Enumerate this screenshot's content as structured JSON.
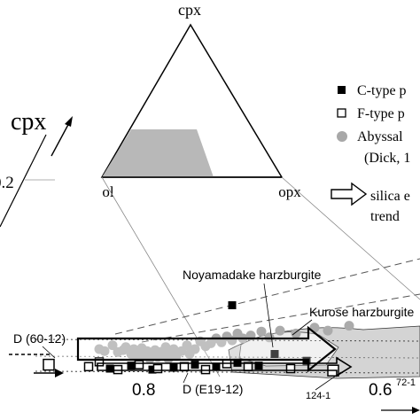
{
  "chart_data": {
    "type": "scatter",
    "inset_ternary": {
      "apex_top": "cpx",
      "apex_left": "ol",
      "apex_right": "opx"
    },
    "axis_label_cpx": "cpx",
    "tick_labels": [
      "0.2",
      "0.8",
      "0.6"
    ],
    "legend": {
      "items": [
        {
          "marker": "filled-square",
          "label": "C-type p"
        },
        {
          "marker": "open-square",
          "label": "F-type p"
        },
        {
          "marker": "gray-circle",
          "label": "Abyssal",
          "sublabel": "(Dick, 1"
        }
      ],
      "arrow_label_1": "silica e",
      "arrow_label_2": "trend"
    },
    "annotations": {
      "noyamadake": "Noyamadake harzburgite",
      "kurose": "Kurose harzburgite",
      "d60": "D (60-12)",
      "de19": "D (E19-12)",
      "l124": "124-1",
      "l72": "72-1"
    },
    "series": [
      {
        "name": "Abyssal",
        "points": [
          [
            0.74,
            0.6
          ],
          [
            0.76,
            0.58
          ],
          [
            0.79,
            0.64
          ],
          [
            0.81,
            0.57
          ],
          [
            0.83,
            0.59
          ],
          [
            0.84,
            0.62
          ],
          [
            0.86,
            0.55
          ],
          [
            0.87,
            0.6
          ],
          [
            0.88,
            0.52
          ],
          [
            0.89,
            0.56
          ],
          [
            0.9,
            0.61
          ],
          [
            0.91,
            0.53
          ],
          [
            0.92,
            0.58
          ],
          [
            0.93,
            0.5
          ],
          [
            0.94,
            0.55
          ],
          [
            0.95,
            0.59
          ],
          [
            0.96,
            0.52
          ],
          [
            0.97,
            0.57
          ],
          [
            0.98,
            0.54
          ],
          [
            0.99,
            0.62
          ],
          [
            1.0,
            0.5
          ],
          [
            1.01,
            0.56
          ],
          [
            1.02,
            0.6
          ],
          [
            1.03,
            0.53
          ],
          [
            1.05,
            0.58
          ],
          [
            1.07,
            0.64
          ],
          [
            1.08,
            0.55
          ],
          [
            1.1,
            0.6
          ],
          [
            1.12,
            0.68
          ],
          [
            1.14,
            0.63
          ],
          [
            1.16,
            0.66
          ],
          [
            1.18,
            0.71
          ],
          [
            1.2,
            0.67
          ],
          [
            1.22,
            0.73
          ],
          [
            1.24,
            0.69
          ],
          [
            1.26,
            0.76
          ],
          [
            1.28,
            0.71
          ],
          [
            1.31,
            0.74
          ],
          [
            1.35,
            0.78
          ],
          [
            1.38,
            0.72
          ],
          [
            1.42,
            0.79
          ],
          [
            1.48,
            0.76
          ],
          [
            1.55,
            0.82
          ],
          [
            1.6,
            0.79
          ],
          [
            1.68,
            0.84
          ]
        ]
      },
      {
        "name": "C-type",
        "points": [
          [
            0.78,
            0.4
          ],
          [
            0.86,
            0.43
          ],
          [
            0.94,
            0.39
          ],
          [
            1.02,
            0.41
          ],
          [
            1.1,
            0.44
          ],
          [
            1.18,
            0.42
          ],
          [
            1.26,
            0.46
          ],
          [
            1.34,
            0.43
          ],
          [
            1.4,
            0.55
          ],
          [
            1.52,
            0.48
          ],
          [
            1.24,
            1.05
          ]
        ]
      },
      {
        "name": "F-type",
        "points": [
          [
            0.55,
            0.44
          ],
          [
            0.7,
            0.42
          ],
          [
            0.74,
            0.47
          ],
          [
            0.81,
            0.39
          ],
          [
            0.89,
            0.44
          ],
          [
            0.96,
            0.4
          ],
          [
            1.06,
            0.42
          ],
          [
            1.14,
            0.39
          ],
          [
            1.22,
            0.45
          ],
          [
            1.3,
            0.42
          ],
          [
            1.46,
            0.4
          ],
          [
            1.62,
            0.38
          ]
        ]
      }
    ]
  }
}
